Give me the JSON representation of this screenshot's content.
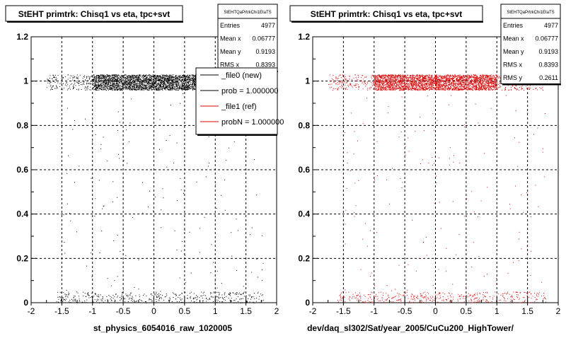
{
  "footer_note": "",
  "chart_data": [
    {
      "type": "scatter",
      "title": "StEHT primtrk: Chisq1 vs eta, tpc+svt",
      "xlabel": "st_physics_6054016_raw_1020005",
      "ylabel": "",
      "xlim": [
        -2,
        2
      ],
      "ylim": [
        0,
        1.2
      ],
      "x_ticks": [
        "-2",
        "-1.5",
        "-1",
        "-0.5",
        "0",
        "0.5",
        "1",
        "1.5",
        "2"
      ],
      "y_ticks": [
        "0",
        "0.2",
        "0.4",
        "0.6",
        "0.8",
        "1",
        "1.2"
      ],
      "grid": true,
      "marker_color": "#000000",
      "stats": {
        "name": "StEHTQaPrtrkChi1EtaTS",
        "rows": [
          {
            "label": "Entries",
            "value": "4977"
          },
          {
            "label": "Mean x",
            "value": "0.06777"
          },
          {
            "label": "Mean y",
            "value": "0.9193"
          },
          {
            "label": "RMS x",
            "value": "0.8393"
          }
        ]
      },
      "legend": {
        "placement": "top-right",
        "entries": [
          {
            "label": "_file0 (new)",
            "color": "#000000"
          },
          {
            "label": "prob = 1.000000",
            "color": "#000000"
          },
          {
            "label": "_file1 (ref)",
            "color": "#dd0000"
          },
          {
            "label": "probN = 1.000000",
            "color": "#dd0000"
          }
        ]
      },
      "series": [
        {
          "band_y": [
            0.96,
            1.03
          ],
          "band_x": [
            -1.75,
            1.35
          ],
          "dense_x": [
            -1.0,
            1.0
          ],
          "low_band_y": [
            0.0,
            0.05
          ],
          "low_band_x": [
            -1.6,
            1.8
          ]
        }
      ]
    },
    {
      "type": "scatter",
      "title": "StEHT primtrk: Chisq1 vs eta, tpc+svt",
      "xlabel": "dev/daq_sl302/Sat/year_2005/CuCu200_HighTower/",
      "ylabel": "",
      "xlim": [
        -2,
        2
      ],
      "ylim": [
        0,
        1.2
      ],
      "x_ticks": [
        "-2",
        "-1.5",
        "-1",
        "-0.5",
        "0",
        "0.5",
        "1",
        "1.5",
        "2"
      ],
      "y_ticks": [
        "0",
        "0.2",
        "0.4",
        "0.6",
        "0.8",
        "1",
        "1.2"
      ],
      "grid": true,
      "marker_color": "#dd0000",
      "stats": {
        "name": "StEHTQaPrtrkChi1EtaTS",
        "rows": [
          {
            "label": "Entries",
            "value": "4977"
          },
          {
            "label": "Mean x",
            "value": "0.06777"
          },
          {
            "label": "Mean y",
            "value": "0.9193"
          },
          {
            "label": "RMS x",
            "value": "0.8393"
          },
          {
            "label": "RMS y",
            "value": "0.2611"
          }
        ]
      },
      "series": [
        {
          "band_y": [
            0.96,
            1.03
          ],
          "band_x": [
            -1.75,
            1.75
          ],
          "dense_x": [
            -1.0,
            1.0
          ],
          "low_band_y": [
            0.0,
            0.05
          ],
          "low_band_x": [
            -1.6,
            1.8
          ]
        }
      ]
    }
  ]
}
